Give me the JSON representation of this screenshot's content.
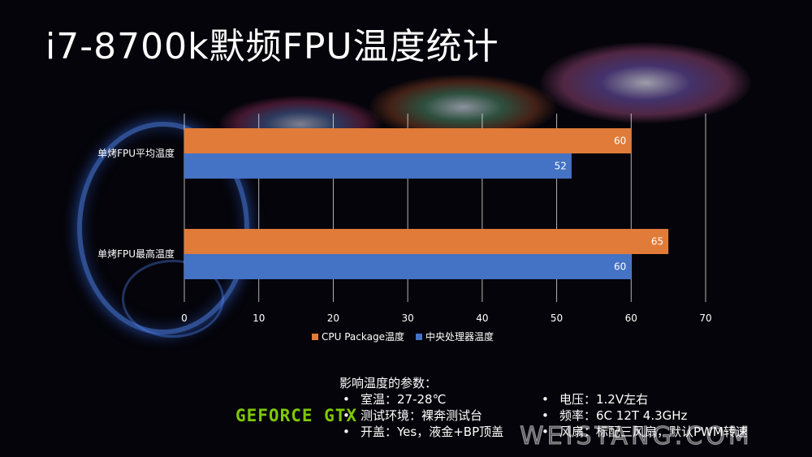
{
  "title": "i7-8700k默频FPU温度统计",
  "chart_data": {
    "type": "bar",
    "orientation": "horizontal",
    "categories": [
      "单烤FPU平均温度",
      "单烤FPU最高温度"
    ],
    "series": [
      {
        "name": "CPU Package温度",
        "values": [
          60,
          65
        ],
        "color": "#e07b39"
      },
      {
        "name": "中央处理器温度",
        "values": [
          52,
          60
        ],
        "color": "#4472c4"
      }
    ],
    "xlim": [
      0,
      70
    ],
    "xticks": [
      0,
      10,
      20,
      30,
      40,
      50,
      60,
      70
    ],
    "grid": true,
    "data_labels": true,
    "legend_position": "bottom"
  },
  "notes": {
    "heading": "影响温度的参数：",
    "items": [
      "室温：27-28℃",
      "电压：1.2V左右",
      "测试环境：裸奔测试台",
      "频率：6C 12T 4.3GHz",
      "开盖：Yes，液金+BP顶盖",
      "风扇：标配三风扇，默认PWM转速"
    ]
  },
  "logo_text": "GEFORCE GTX",
  "watermark": "WEISTANG.COM"
}
